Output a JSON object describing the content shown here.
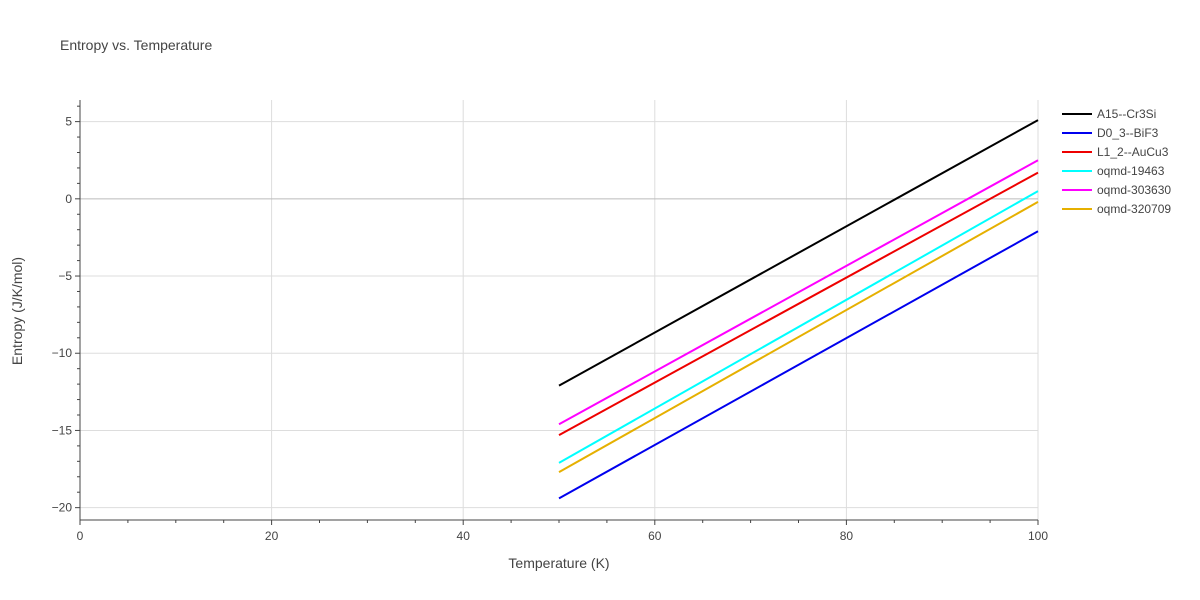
{
  "chart_data": {
    "type": "line",
    "title": "Entropy vs. Temperature",
    "xlabel": "Temperature (K)",
    "ylabel": "Entropy (J/K/mol)",
    "xlim": [
      0,
      100
    ],
    "ylim": [
      -20.8,
      6.4
    ],
    "x_ticks": [
      0,
      20,
      40,
      60,
      80,
      100
    ],
    "y_ticks": [
      -20,
      -15,
      -10,
      -5,
      0,
      5
    ],
    "y_tick_labels": [
      "−20",
      "−15",
      "−10",
      "−5",
      "0",
      "5"
    ],
    "grid": true,
    "legend_position": "top-right",
    "series": [
      {
        "name": "A15--Cr3Si",
        "color": "#000000",
        "x": [
          50,
          100
        ],
        "y": [
          -12.1,
          5.1
        ]
      },
      {
        "name": "D0_3--BiF3",
        "color": "#0000ee",
        "x": [
          50,
          100
        ],
        "y": [
          -19.4,
          -2.1
        ]
      },
      {
        "name": "L1_2--AuCu3",
        "color": "#ee0000",
        "x": [
          50,
          100
        ],
        "y": [
          -15.3,
          1.7
        ]
      },
      {
        "name": "oqmd-19463",
        "color": "#00ffff",
        "x": [
          50,
          100
        ],
        "y": [
          -17.1,
          0.5
        ]
      },
      {
        "name": "oqmd-303630",
        "color": "#ff00ff",
        "x": [
          50,
          100
        ],
        "y": [
          -14.6,
          2.5
        ]
      },
      {
        "name": "oqmd-320709",
        "color": "#e6b000",
        "x": [
          50,
          100
        ],
        "y": [
          -17.7,
          -0.2
        ]
      }
    ]
  }
}
